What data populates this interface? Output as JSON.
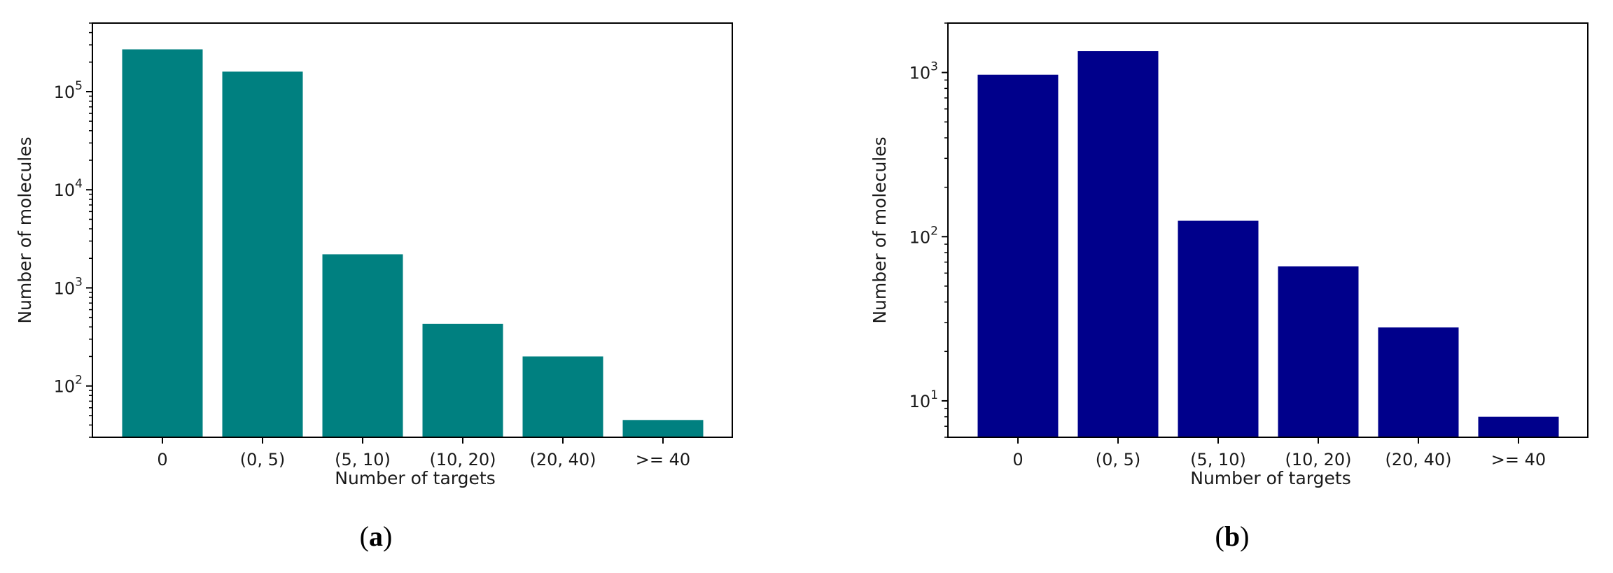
{
  "chart_data": [
    {
      "panel": "a",
      "type": "bar",
      "categories": [
        "0",
        "(0, 5)",
        "(5, 10)",
        "(10, 20)",
        "(20, 40)",
        ">= 40"
      ],
      "values": [
        270000,
        160000,
        2200,
        430,
        200,
        45
      ],
      "xlabel": "Number of targets",
      "ylabel": "Number of molecules",
      "yscale": "log",
      "ylim": [
        30,
        500000
      ],
      "yticks": [
        {
          "value": 100,
          "base": "10",
          "exp": "2"
        },
        {
          "value": 1000,
          "base": "10",
          "exp": "3"
        },
        {
          "value": 10000,
          "base": "10",
          "exp": "4"
        },
        {
          "value": 100000,
          "base": "10",
          "exp": "5"
        }
      ],
      "bar_color": "#008080",
      "grid": false,
      "caption": "(a)"
    },
    {
      "panel": "b",
      "type": "bar",
      "categories": [
        "0",
        "(0, 5)",
        "(5, 10)",
        "(10, 20)",
        "(20, 40)",
        ">= 40"
      ],
      "values": [
        970,
        1350,
        125,
        66,
        28,
        8
      ],
      "xlabel": "Number of targets",
      "ylabel": "Number of molecules",
      "yscale": "log",
      "ylim": [
        6,
        2000
      ],
      "yticks": [
        {
          "value": 10,
          "base": "10",
          "exp": "1"
        },
        {
          "value": 100,
          "base": "10",
          "exp": "2"
        },
        {
          "value": 1000,
          "base": "10",
          "exp": "3"
        }
      ],
      "bar_color": "#00008b",
      "grid": false,
      "caption": "(b)"
    }
  ]
}
